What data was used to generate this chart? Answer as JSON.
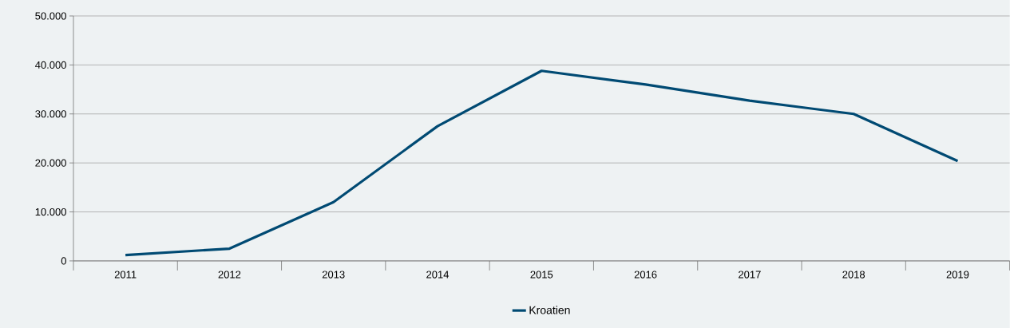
{
  "chart_data": {
    "type": "line",
    "categories": [
      "2011",
      "2012",
      "2013",
      "2014",
      "2015",
      "2016",
      "2017",
      "2018",
      "2019"
    ],
    "series": [
      {
        "name": "Kroatien",
        "color": "#004a73",
        "values": [
          1200,
          2500,
          12000,
          27500,
          38800,
          36000,
          32700,
          30000,
          20400
        ]
      }
    ],
    "ylim": [
      0,
      50000
    ],
    "yticks": [
      0,
      {
        "value": 10000,
        "label": "10.000"
      },
      {
        "value": 20000,
        "label": "20.000"
      },
      {
        "value": 30000,
        "label": "30.000"
      },
      {
        "value": 40000,
        "label": "40.000"
      },
      {
        "value": 50000,
        "label": "50.000"
      }
    ],
    "grid": "y",
    "legend": "bottom",
    "marker": "none",
    "line_style": "solid"
  }
}
